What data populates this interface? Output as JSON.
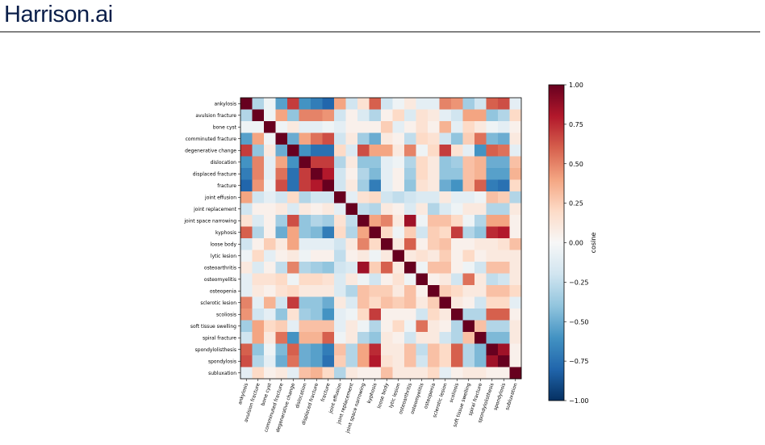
{
  "header": {
    "brand": "Harrison.ai"
  },
  "chart_data": {
    "type": "heatmap",
    "labels": [
      "ankylosis",
      "avulsion fracture",
      "bone cyst",
      "comminuted fracture",
      "degenerative change",
      "dislocation",
      "displaced fracture",
      "fracture",
      "joint effusion",
      "joint replacement",
      "joint space narrowing",
      "kyphosis",
      "loose body",
      "lytic lesion",
      "osteoarthritis",
      "osteomyelitis",
      "osteopenia",
      "sclerotic lesion",
      "scoliosis",
      "soft tissue swelling",
      "spiral fracture",
      "spondylolisthesis",
      "spondylosis",
      "subluxation"
    ],
    "matrix": [
      [
        1.0,
        -0.3,
        -0.05,
        -0.55,
        0.7,
        -0.6,
        -0.7,
        -0.8,
        0.4,
        -0.2,
        0.15,
        0.6,
        -0.2,
        -0.05,
        0.1,
        -0.1,
        -0.1,
        0.5,
        0.45,
        -0.35,
        -0.2,
        0.6,
        0.65,
        -0.1
      ],
      [
        -0.3,
        1.0,
        -0.05,
        0.4,
        -0.4,
        0.5,
        0.5,
        0.45,
        -0.2,
        0.05,
        -0.15,
        -0.3,
        0.05,
        0.2,
        -0.15,
        0.15,
        0.1,
        -0.1,
        -0.2,
        0.4,
        0.4,
        -0.4,
        -0.3,
        0.2
      ],
      [
        -0.05,
        -0.05,
        1.0,
        -0.05,
        0.1,
        -0.1,
        -0.1,
        -0.05,
        -0.1,
        0.05,
        0.05,
        0.05,
        0.25,
        -0.1,
        0.05,
        0.15,
        0.05,
        0.35,
        -0.1,
        0.2,
        0.1,
        -0.05,
        -0.1,
        0.05
      ],
      [
        -0.55,
        0.4,
        -0.05,
        1.0,
        -0.5,
        0.4,
        0.55,
        0.65,
        -0.2,
        0.1,
        -0.35,
        -0.5,
        0.1,
        0.05,
        -0.25,
        0.2,
        0.15,
        -0.2,
        -0.4,
        0.25,
        0.55,
        -0.45,
        -0.5,
        0.1
      ],
      [
        0.7,
        -0.4,
        0.1,
        -0.5,
        1.0,
        -0.6,
        -0.75,
        -0.75,
        0.2,
        -0.15,
        0.65,
        0.4,
        0.4,
        0.1,
        0.5,
        -0.05,
        0.2,
        0.7,
        0.15,
        -0.1,
        -0.6,
        0.6,
        0.55,
        -0.1
      ],
      [
        -0.6,
        0.5,
        -0.1,
        0.4,
        -0.6,
        1.0,
        0.7,
        0.7,
        -0.3,
        0.1,
        -0.4,
        -0.4,
        -0.1,
        -0.05,
        -0.3,
        0.2,
        0.1,
        -0.4,
        -0.35,
        0.3,
        0.35,
        -0.5,
        -0.5,
        0.3
      ],
      [
        -0.7,
        0.5,
        -0.1,
        0.55,
        -0.75,
        0.7,
        1.0,
        0.8,
        -0.2,
        0.05,
        -0.3,
        -0.45,
        -0.1,
        0.05,
        -0.35,
        0.2,
        0.1,
        -0.4,
        -0.4,
        0.3,
        0.35,
        -0.55,
        -0.55,
        0.35
      ],
      [
        -0.8,
        0.45,
        -0.05,
        0.65,
        -0.75,
        0.7,
        0.8,
        1.0,
        -0.2,
        0.1,
        -0.35,
        -0.7,
        -0.1,
        0.05,
        -0.4,
        0.15,
        0.1,
        -0.5,
        -0.6,
        0.3,
        0.6,
        -0.7,
        -0.75,
        0.2
      ],
      [
        0.4,
        -0.2,
        -0.1,
        -0.2,
        0.2,
        -0.3,
        -0.2,
        -0.2,
        1.0,
        -0.1,
        0.15,
        0.2,
        -0.2,
        -0.25,
        -0.2,
        -0.15,
        -0.15,
        0.1,
        -0.1,
        -0.1,
        -0.05,
        0.3,
        0.25,
        -0.3
      ],
      [
        -0.2,
        0.05,
        0.05,
        0.1,
        -0.15,
        0.1,
        0.05,
        0.1,
        -0.1,
        1.0,
        -0.25,
        -0.3,
        0.1,
        0.05,
        -0.15,
        0.1,
        -0.3,
        -0.15,
        -0.05,
        0.1,
        0.1,
        -0.3,
        -0.3,
        0.1
      ],
      [
        0.15,
        -0.15,
        0.05,
        -0.35,
        0.65,
        -0.4,
        -0.3,
        -0.35,
        0.15,
        -0.25,
        1.0,
        0.4,
        0.5,
        0.1,
        0.85,
        -0.05,
        0.3,
        0.3,
        0.2,
        -0.05,
        -0.3,
        0.4,
        0.4,
        0.05
      ],
      [
        0.6,
        -0.3,
        0.05,
        -0.5,
        0.4,
        -0.4,
        -0.45,
        -0.7,
        0.2,
        -0.3,
        0.4,
        1.0,
        0.2,
        -0.05,
        0.25,
        -0.2,
        0.25,
        0.2,
        0.7,
        -0.3,
        -0.4,
        0.75,
        0.8,
        0.05
      ],
      [
        -0.2,
        0.05,
        0.25,
        0.1,
        0.4,
        -0.1,
        -0.1,
        -0.1,
        -0.2,
        0.1,
        0.5,
        0.2,
        1.0,
        0.1,
        0.6,
        0.05,
        0.25,
        0.3,
        0.05,
        0.05,
        0.1,
        0.1,
        0.15,
        0.3
      ],
      [
        -0.05,
        0.2,
        -0.1,
        0.05,
        0.1,
        -0.05,
        0.05,
        0.05,
        -0.25,
        0.05,
        0.1,
        -0.05,
        0.1,
        1.0,
        0.1,
        0.15,
        0.1,
        0.25,
        0.05,
        0.2,
        0.05,
        0.1,
        0.1,
        0.1
      ],
      [
        0.1,
        -0.15,
        0.05,
        -0.25,
        0.5,
        -0.3,
        -0.35,
        -0.4,
        -0.2,
        -0.15,
        0.85,
        0.25,
        0.6,
        0.1,
        1.0,
        -0.05,
        0.3,
        0.3,
        0.05,
        -0.05,
        -0.2,
        0.3,
        0.3,
        0.1
      ],
      [
        -0.1,
        0.15,
        0.15,
        0.2,
        -0.05,
        0.2,
        0.2,
        0.15,
        -0.15,
        0.1,
        -0.05,
        -0.2,
        0.05,
        0.15,
        -0.05,
        1.0,
        0.05,
        0.1,
        -0.2,
        0.55,
        0.1,
        -0.25,
        -0.2,
        0.1
      ],
      [
        -0.1,
        0.1,
        0.05,
        0.15,
        0.2,
        0.1,
        0.1,
        0.1,
        -0.15,
        -0.3,
        0.3,
        0.25,
        0.25,
        0.1,
        0.3,
        0.05,
        1.0,
        0.25,
        0.2,
        0.1,
        0.1,
        0.3,
        0.3,
        0.2
      ],
      [
        0.5,
        -0.1,
        0.35,
        -0.2,
        0.7,
        -0.4,
        -0.4,
        -0.5,
        0.1,
        -0.15,
        0.3,
        0.2,
        0.3,
        0.25,
        0.3,
        0.1,
        0.25,
        1.0,
        0.1,
        0.05,
        -0.2,
        0.2,
        0.2,
        -0.1
      ],
      [
        0.45,
        -0.2,
        -0.1,
        -0.4,
        0.15,
        -0.35,
        -0.4,
        -0.6,
        -0.1,
        -0.05,
        0.2,
        0.7,
        0.05,
        0.05,
        0.05,
        -0.2,
        0.2,
        0.1,
        1.0,
        -0.3,
        -0.3,
        0.6,
        0.6,
        0.05
      ],
      [
        -0.35,
        0.4,
        0.2,
        0.25,
        -0.1,
        0.3,
        0.3,
        0.3,
        -0.1,
        0.1,
        -0.05,
        -0.3,
        0.05,
        0.2,
        -0.05,
        0.55,
        0.1,
        0.05,
        -0.3,
        1.0,
        0.3,
        -0.3,
        -0.3,
        0.1
      ],
      [
        -0.2,
        0.4,
        0.1,
        0.55,
        -0.6,
        0.35,
        0.35,
        0.6,
        -0.05,
        0.1,
        -0.3,
        -0.4,
        0.1,
        0.05,
        -0.2,
        0.1,
        0.1,
        -0.2,
        -0.3,
        0.3,
        1.0,
        -0.45,
        -0.45,
        0.1
      ],
      [
        0.6,
        -0.4,
        -0.05,
        -0.45,
        0.6,
        -0.5,
        -0.55,
        -0.7,
        0.3,
        -0.3,
        0.4,
        0.75,
        0.1,
        0.1,
        0.3,
        -0.25,
        0.3,
        0.2,
        0.6,
        -0.3,
        -0.45,
        1.0,
        0.85,
        0.05
      ],
      [
        0.65,
        -0.3,
        -0.1,
        -0.5,
        0.55,
        -0.5,
        -0.55,
        -0.75,
        0.25,
        -0.3,
        0.4,
        0.8,
        0.15,
        0.1,
        0.3,
        -0.2,
        0.3,
        0.2,
        0.6,
        -0.3,
        -0.45,
        0.85,
        1.0,
        0.05
      ],
      [
        -0.1,
        0.2,
        0.05,
        0.1,
        -0.1,
        0.3,
        0.35,
        0.2,
        -0.3,
        0.1,
        0.05,
        0.05,
        0.3,
        0.1,
        0.1,
        0.1,
        0.2,
        -0.1,
        0.05,
        0.1,
        0.1,
        0.05,
        0.05,
        1.0
      ]
    ],
    "colorbar": {
      "label": "cosine",
      "min": -1.0,
      "max": 1.0,
      "ticks": [
        "1.00",
        "0.75",
        "0.50",
        "0.25",
        "0.00",
        "−0.25",
        "−0.50",
        "−0.75",
        "−1.00"
      ]
    },
    "colormap": [
      "#053061",
      "#2166ac",
      "#4393c3",
      "#92c5de",
      "#d1e5f0",
      "#f7f7f7",
      "#fddbc7",
      "#f4a582",
      "#d6604d",
      "#b2182b",
      "#67001f"
    ]
  }
}
